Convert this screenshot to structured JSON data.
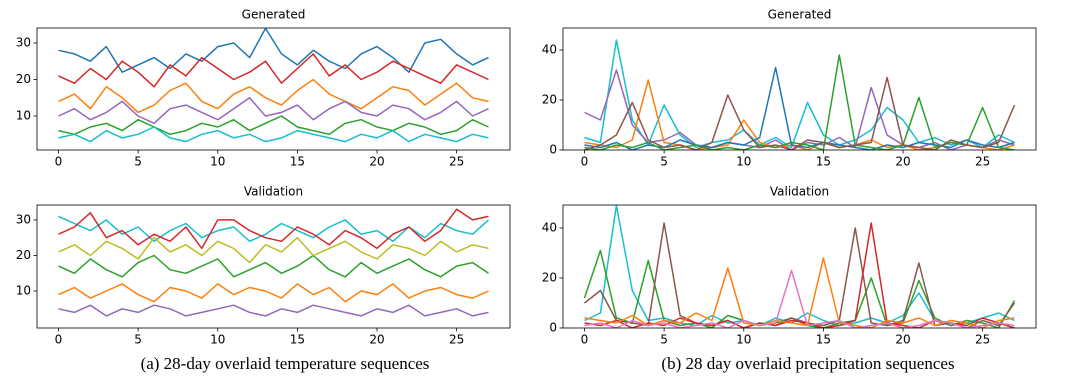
{
  "chart_data": [
    {
      "type": "line",
      "title": "Generated",
      "x": [
        0,
        1,
        2,
        3,
        4,
        5,
        6,
        7,
        8,
        9,
        10,
        11,
        12,
        13,
        14,
        15,
        16,
        17,
        18,
        19,
        20,
        21,
        22,
        23,
        24,
        25,
        26,
        27
      ],
      "xlim": [
        -1.35,
        28.35
      ],
      "xticks": [
        0,
        5,
        10,
        15,
        20,
        25
      ],
      "ylim": [
        0.7,
        34.1
      ],
      "yticks": [
        10,
        20,
        30
      ],
      "series": [
        {
          "color": "#1f77b4",
          "values": [
            28,
            27,
            25,
            29,
            22,
            24,
            26,
            23,
            27,
            25,
            29,
            30,
            26,
            34,
            27,
            24,
            28,
            25,
            23,
            27,
            29,
            26,
            22,
            30,
            31,
            27,
            24,
            26
          ]
        },
        {
          "color": "#ff7f0e",
          "values": [
            14,
            16,
            12,
            18,
            15,
            11,
            13,
            17,
            19,
            14,
            12,
            16,
            18,
            15,
            13,
            17,
            20,
            16,
            14,
            12,
            15,
            18,
            17,
            13,
            16,
            19,
            15,
            14
          ]
        },
        {
          "color": "#2ca02c",
          "values": [
            6,
            5,
            7,
            8,
            6,
            9,
            7,
            5,
            6,
            8,
            7,
            9,
            6,
            8,
            10,
            7,
            6,
            5,
            8,
            9,
            7,
            6,
            8,
            7,
            5,
            6,
            9,
            7
          ]
        },
        {
          "color": "#d62728",
          "values": [
            21,
            19,
            23,
            20,
            25,
            22,
            18,
            24,
            21,
            26,
            23,
            20,
            22,
            25,
            19,
            23,
            27,
            21,
            24,
            20,
            22,
            25,
            23,
            21,
            19,
            24,
            22,
            20
          ]
        },
        {
          "color": "#9467bd",
          "values": [
            10,
            12,
            9,
            11,
            14,
            10,
            8,
            12,
            13,
            11,
            9,
            12,
            15,
            10,
            11,
            13,
            9,
            12,
            14,
            11,
            10,
            13,
            12,
            9,
            11,
            14,
            10,
            12
          ]
        },
        {
          "color": "#17becf",
          "values": [
            4,
            5,
            3,
            6,
            4,
            5,
            7,
            4,
            3,
            5,
            6,
            4,
            5,
            3,
            4,
            6,
            5,
            4,
            3,
            5,
            4,
            6,
            3,
            5,
            4,
            3,
            5,
            4
          ]
        }
      ]
    },
    {
      "type": "line",
      "title": "Generated",
      "x": [
        0,
        1,
        2,
        3,
        4,
        5,
        6,
        7,
        8,
        9,
        10,
        11,
        12,
        13,
        14,
        15,
        16,
        17,
        18,
        19,
        20,
        21,
        22,
        23,
        24,
        25,
        26,
        27
      ],
      "xlim": [
        -1.35,
        28.35
      ],
      "xticks": [
        0,
        5,
        10,
        15,
        20,
        25
      ],
      "ylim": [
        0,
        48.8
      ],
      "yticks": [
        0,
        20,
        40
      ],
      "series": [
        {
          "color": "#17becf",
          "values": [
            5,
            3,
            44,
            12,
            2,
            18,
            6,
            1,
            3,
            4,
            8,
            2,
            5,
            1,
            19,
            6,
            2,
            4,
            8,
            17,
            12,
            3,
            5,
            2,
            4,
            1,
            6,
            3
          ]
        },
        {
          "color": "#9467bd",
          "values": [
            15,
            12,
            32,
            10,
            3,
            4,
            7,
            2,
            1,
            3,
            2,
            1,
            4,
            0,
            3,
            2,
            5,
            1,
            25,
            6,
            2,
            1,
            3,
            0,
            2,
            1,
            4,
            2
          ]
        },
        {
          "color": "#ff7f0e",
          "values": [
            3,
            2,
            1,
            4,
            28,
            3,
            2,
            0,
            1,
            2,
            12,
            3,
            1,
            2,
            0,
            3,
            1,
            2,
            4,
            1,
            2,
            0,
            1,
            3,
            2,
            1,
            0,
            2
          ]
        },
        {
          "color": "#1f77b4",
          "values": [
            2,
            1,
            3,
            0,
            2,
            1,
            4,
            2,
            1,
            3,
            2,
            5,
            33,
            2,
            1,
            3,
            2,
            1,
            0,
            2,
            1,
            3,
            2,
            1,
            4,
            2,
            1,
            3
          ]
        },
        {
          "color": "#2ca02c",
          "values": [
            1,
            0,
            2,
            1,
            3,
            0,
            1,
            2,
            0,
            1,
            0,
            2,
            1,
            3,
            2,
            0,
            38,
            2,
            1,
            0,
            2,
            21,
            1,
            3,
            2,
            17,
            1,
            0
          ]
        },
        {
          "color": "#8c564b",
          "values": [
            0,
            2,
            6,
            19,
            4,
            1,
            2,
            0,
            3,
            22,
            8,
            1,
            2,
            0,
            4,
            3,
            1,
            2,
            3,
            29,
            2,
            1,
            0,
            4,
            2,
            1,
            3,
            18
          ]
        }
      ]
    },
    {
      "type": "line",
      "title": "Validation",
      "x": [
        0,
        1,
        2,
        3,
        4,
        5,
        6,
        7,
        8,
        9,
        10,
        11,
        12,
        13,
        14,
        15,
        16,
        17,
        18,
        19,
        20,
        21,
        22,
        23,
        24,
        25,
        26,
        27
      ],
      "xlim": [
        -1.35,
        28.35
      ],
      "xticks": [
        0,
        5,
        10,
        15,
        20,
        25
      ],
      "ylim": [
        -0.4,
        34.2
      ],
      "yticks": [
        10,
        20,
        30
      ],
      "series": [
        {
          "color": "#17becf",
          "values": [
            31,
            29,
            27,
            30,
            26,
            28,
            24,
            27,
            29,
            25,
            27,
            28,
            24,
            26,
            29,
            27,
            25,
            28,
            30,
            26,
            27,
            24,
            28,
            25,
            29,
            27,
            26,
            30
          ]
        },
        {
          "color": "#d62728",
          "values": [
            26,
            28,
            32,
            25,
            27,
            23,
            26,
            24,
            28,
            22,
            30,
            30,
            27,
            25,
            24,
            28,
            26,
            23,
            27,
            25,
            22,
            26,
            28,
            24,
            27,
            33,
            30,
            31
          ]
        },
        {
          "color": "#2ca02c",
          "values": [
            17,
            15,
            19,
            16,
            14,
            18,
            20,
            16,
            15,
            17,
            19,
            14,
            16,
            18,
            15,
            17,
            20,
            16,
            14,
            18,
            15,
            17,
            19,
            16,
            14,
            17,
            18,
            15
          ]
        },
        {
          "color": "#ff7f0e",
          "values": [
            9,
            11,
            8,
            10,
            12,
            9,
            7,
            11,
            10,
            8,
            12,
            9,
            11,
            10,
            8,
            12,
            9,
            11,
            7,
            10,
            9,
            12,
            8,
            10,
            11,
            9,
            8,
            10
          ]
        },
        {
          "color": "#9467bd",
          "values": [
            5,
            4,
            6,
            3,
            5,
            4,
            6,
            5,
            3,
            4,
            5,
            6,
            4,
            3,
            5,
            4,
            6,
            5,
            4,
            3,
            5,
            4,
            6,
            3,
            4,
            5,
            3,
            4
          ]
        },
        {
          "color": "#bcbd22",
          "values": [
            21,
            23,
            20,
            24,
            22,
            19,
            25,
            21,
            23,
            20,
            24,
            22,
            18,
            23,
            21,
            25,
            20,
            22,
            24,
            21,
            19,
            23,
            22,
            20,
            24,
            21,
            23,
            22
          ]
        }
      ]
    },
    {
      "type": "line",
      "title": "Validation",
      "x": [
        0,
        1,
        2,
        3,
        4,
        5,
        6,
        7,
        8,
        9,
        10,
        11,
        12,
        13,
        14,
        15,
        16,
        17,
        18,
        19,
        20,
        21,
        22,
        23,
        24,
        25,
        26,
        27
      ],
      "xlim": [
        -1.35,
        28.35
      ],
      "xticks": [
        0,
        5,
        10,
        15,
        20,
        25
      ],
      "ylim": [
        0,
        49.2
      ],
      "yticks": [
        0,
        20,
        40
      ],
      "series": [
        {
          "color": "#17becf",
          "values": [
            3,
            6,
            49,
            15,
            3,
            4,
            2,
            1,
            5,
            2,
            3,
            1,
            4,
            2,
            6,
            3,
            1,
            2,
            4,
            2,
            5,
            14,
            3,
            1,
            2,
            4,
            6,
            3
          ]
        },
        {
          "color": "#2ca02c",
          "values": [
            12,
            31,
            4,
            2,
            27,
            3,
            1,
            2,
            0,
            5,
            3,
            1,
            2,
            4,
            1,
            0,
            2,
            3,
            20,
            1,
            2,
            19,
            4,
            1,
            3,
            2,
            0,
            11
          ]
        },
        {
          "color": "#8c564b",
          "values": [
            10,
            15,
            3,
            2,
            1,
            42,
            5,
            2,
            1,
            3,
            0,
            2,
            1,
            4,
            2,
            1,
            3,
            40,
            2,
            1,
            3,
            26,
            1,
            2,
            0,
            3,
            1,
            10
          ]
        },
        {
          "color": "#d62728",
          "values": [
            2,
            1,
            3,
            0,
            2,
            1,
            4,
            2,
            1,
            3,
            0,
            2,
            1,
            3,
            2,
            0,
            1,
            3,
            42,
            2,
            1,
            0,
            3,
            2,
            1,
            4,
            2,
            0
          ]
        },
        {
          "color": "#ff7f0e",
          "values": [
            4,
            3,
            2,
            5,
            1,
            3,
            2,
            6,
            3,
            24,
            2,
            1,
            3,
            2,
            1,
            28,
            2,
            1,
            0,
            3,
            2,
            4,
            1,
            3,
            2,
            0,
            3,
            4
          ]
        },
        {
          "color": "#e377c2",
          "values": [
            1,
            2,
            0,
            3,
            1,
            2,
            0,
            1,
            2,
            0,
            3,
            1,
            2,
            23,
            1,
            2,
            3,
            0,
            1,
            2,
            0,
            1,
            3,
            2,
            0,
            1,
            2,
            1
          ]
        }
      ]
    }
  ],
  "captions": [
    "(a) 28-day overlaid temperature sequences",
    "(b) 28 day overlaid precipitation sequences"
  ]
}
